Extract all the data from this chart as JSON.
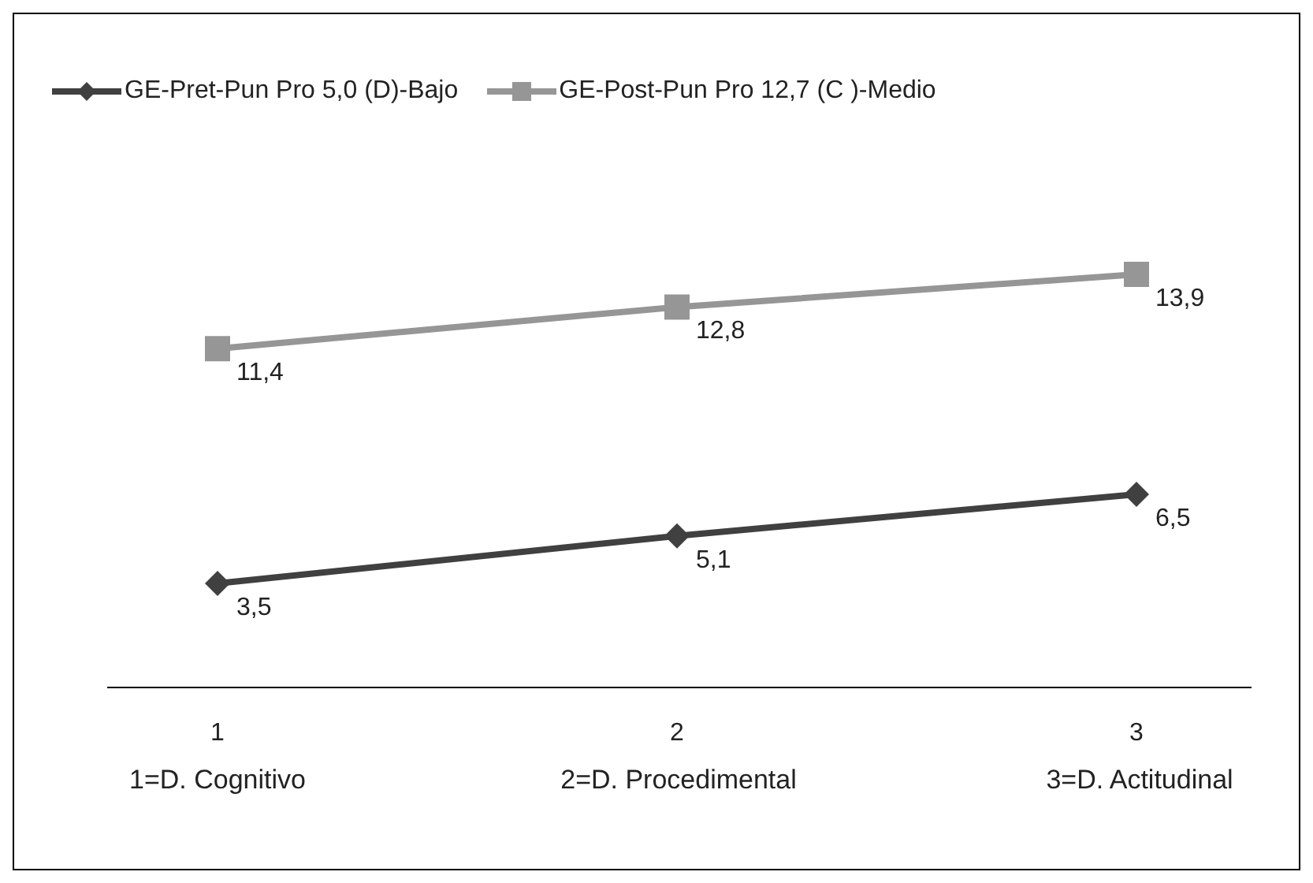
{
  "chart_data": {
    "type": "line",
    "categories": [
      "1",
      "2",
      "3"
    ],
    "series": [
      {
        "name": "GE-Pret-Pun Pro 5,0 (D)-Bajo",
        "color": "#404040",
        "marker": "diamond",
        "values": [
          3.5,
          5.1,
          6.5
        ],
        "value_labels": [
          "3,5",
          "5,1",
          "6,5"
        ]
      },
      {
        "name": "GE-Post-Pun Pro 12,7 (C )-Medio",
        "color": "#969696",
        "marker": "square",
        "values": [
          11.4,
          12.8,
          13.9
        ],
        "value_labels": [
          "11,4",
          "12,8",
          "13,9"
        ]
      }
    ],
    "tick_labels": "x",
    "legend": "top left",
    "grid": false,
    "line_style": "solid",
    "annotations": [
      "1=D. Cognitivo",
      "2=D. Procedimental",
      "3=D. Actitudinal"
    ]
  }
}
